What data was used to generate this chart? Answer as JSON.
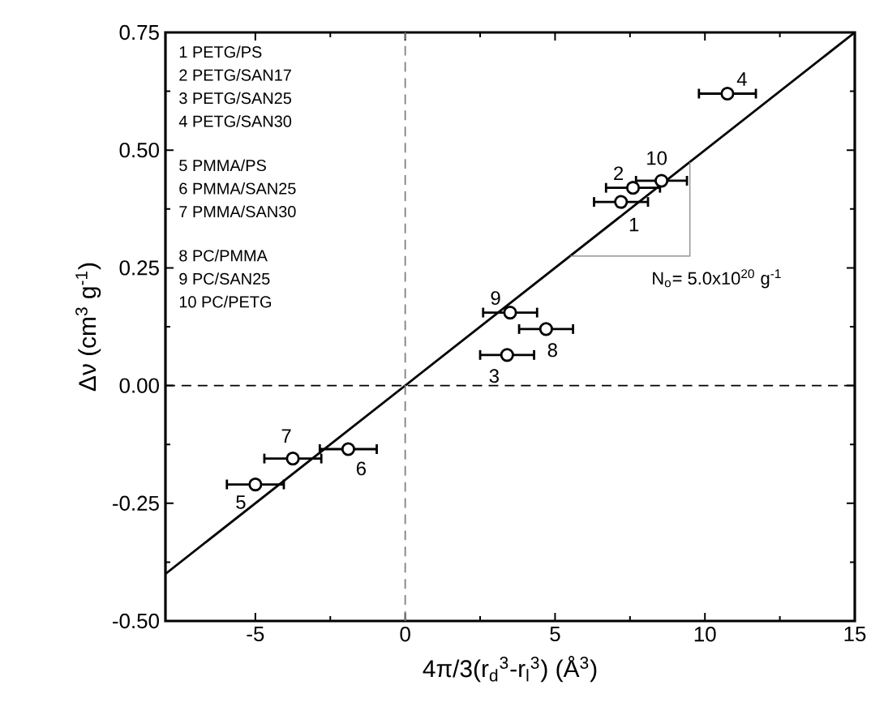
{
  "chart_data": {
    "type": "scatter",
    "xlabel": "4π/3(r$_{d}$$^{3}$-r$_{l}$$^{3}$)  (Å$^{3}$)",
    "ylabel": "Δν (cm$^{3}$ g$^{-1}$)",
    "xlim": [
      -8,
      15
    ],
    "ylim": [
      -0.5,
      0.75
    ],
    "xticks": [
      -5,
      0,
      5,
      10,
      15
    ],
    "yticks": [
      {
        "value": -0.5,
        "label": "-0.50"
      },
      {
        "value": -0.25,
        "label": "-0.25"
      },
      {
        "value": 0,
        "label": "0.00"
      },
      {
        "value": 0.25,
        "label": "0.25"
      },
      {
        "value": 0.5,
        "label": "0.50"
      },
      {
        "value": 0.75,
        "label": "0.75"
      }
    ],
    "series": [
      {
        "color": "#000000",
        "marker": "circle",
        "x": [
          7.2,
          7.6,
          3.4,
          10.75,
          -5.0,
          -1.9,
          -3.75,
          4.7,
          3.5,
          8.55
        ],
        "values": [
          0.39,
          0.42,
          0.065,
          0.62,
          -0.21,
          -0.135,
          -0.155,
          0.12,
          0.155,
          0.435
        ],
        "xerrors": [
          0.9,
          0.9,
          0.9,
          0.95,
          0.95,
          0.95,
          0.95,
          0.9,
          0.9,
          0.85
        ]
      },
      {
        "type": "line",
        "color": "#000000",
        "marker": "none",
        "line_style": "solid",
        "x": [
          -8,
          15
        ],
        "values": [
          -0.4,
          0.75
        ]
      },
      {
        "type": "line",
        "color": "#808080",
        "marker": "none",
        "line_style": "solid",
        "x": [
          5.5,
          9.5,
          9.5
        ],
        "values": [
          0.275,
          0.275,
          0.475
        ]
      }
    ],
    "ref_lines": [
      {
        "axis": "x",
        "value": 0,
        "color": "#808080",
        "line_style": "dashed"
      },
      {
        "axis": "y",
        "value": 0,
        "color": "#000000",
        "line_style": "dashed"
      }
    ],
    "annotations": [
      "1  PETG/PS",
      "2  PETG/SAN17",
      "3  PETG/SAN25",
      "4  PETG/SAN30",
      "5  PMMA/PS",
      "6  PMMA/SAN25",
      "7  PMMA/SAN30",
      "8  PC/PMMA",
      "9  PC/SAN25",
      "10 PC/PETG",
      {
        "text": "N$_{o}$= 5.0x10$^{20}$ g$^{-1}$",
        "x": 9.5,
        "y": 0.275
      },
      {
        "text": "1",
        "x": 7.2,
        "y": 0.39
      },
      {
        "text": "2",
        "x": 7.6,
        "y": 0.42
      },
      {
        "text": "3",
        "x": 3.4,
        "y": 0.065
      },
      {
        "text": "4",
        "x": 10.75,
        "y": 0.62
      },
      {
        "text": "5",
        "x": -5.0,
        "y": -0.21
      },
      {
        "text": "6",
        "x": -1.9,
        "y": -0.135
      },
      {
        "text": "7",
        "x": -3.75,
        "y": -0.155
      },
      {
        "text": "8",
        "x": 4.7,
        "y": 0.12
      },
      {
        "text": "9",
        "x": 3.5,
        "y": 0.155
      },
      {
        "text": "10",
        "x": 8.55,
        "y": 0.435
      }
    ]
  }
}
